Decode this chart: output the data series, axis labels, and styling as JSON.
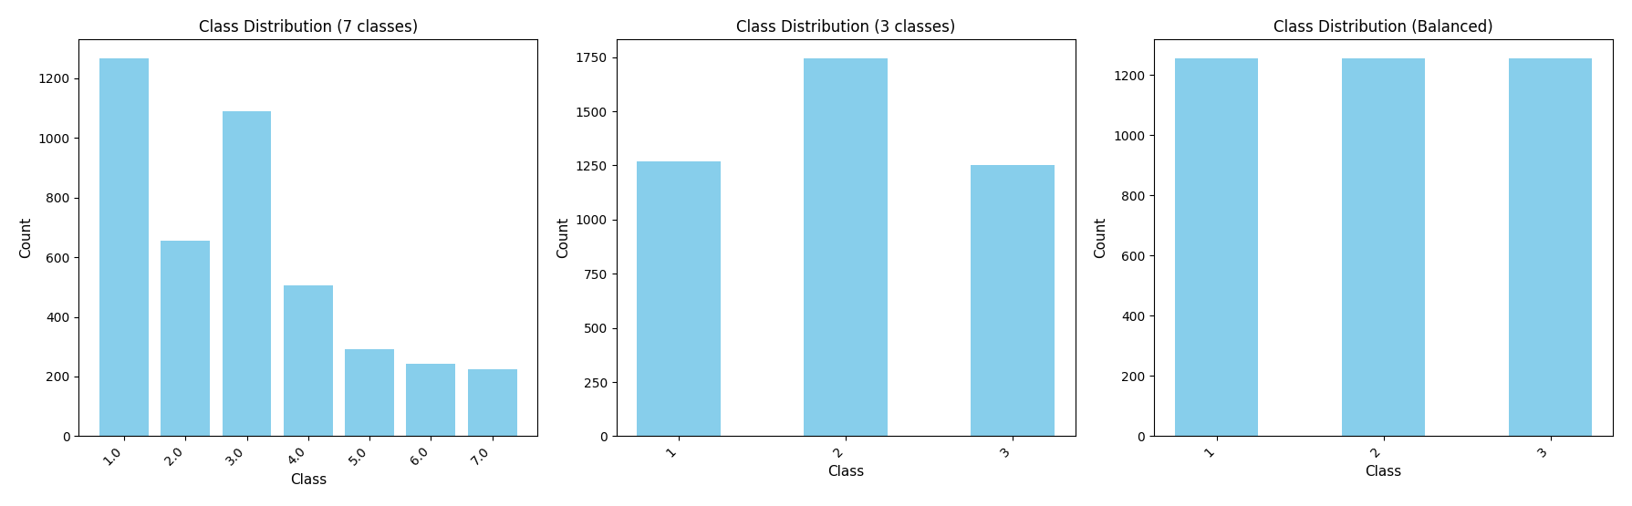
{
  "chart1": {
    "title": "Class Distribution (7 classes)",
    "categories": [
      "1.0",
      "2.0",
      "3.0",
      "4.0",
      "5.0",
      "6.0",
      "7.0"
    ],
    "values": [
      1267,
      655,
      1090,
      507,
      292,
      244,
      225
    ],
    "xlabel": "Class",
    "ylabel": "Count"
  },
  "chart2": {
    "title": "Class Distribution (3 classes)",
    "categories": [
      "1",
      "2",
      "3"
    ],
    "values": [
      1267,
      1745,
      1250
    ],
    "xlabel": "Class",
    "ylabel": "Count"
  },
  "chart3": {
    "title": "Class Distribution (Balanced)",
    "categories": [
      "1",
      "2",
      "3"
    ],
    "values": [
      1255,
      1255,
      1255
    ],
    "xlabel": "Class",
    "ylabel": "Count"
  },
  "bar_color": "#87CEEB",
  "figsize": [
    17.89,
    5.55
  ],
  "dpi": 100,
  "title_fontsize": 12,
  "label_fontsize": 11,
  "tick_fontsize": 10
}
